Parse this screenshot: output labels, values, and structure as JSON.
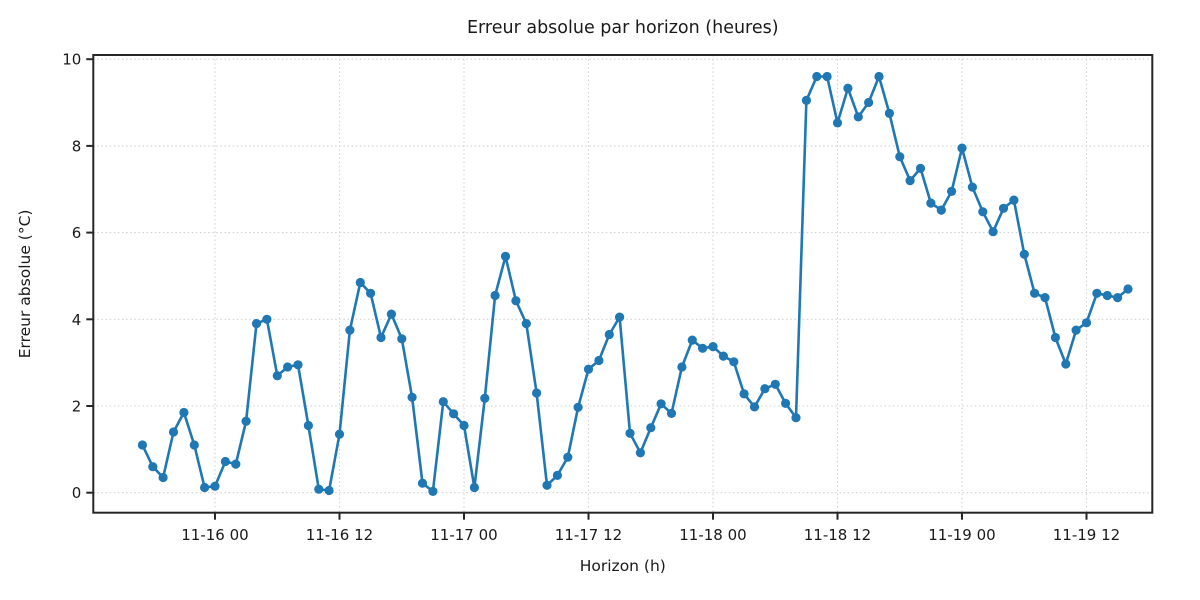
{
  "chart_data": {
    "type": "line",
    "title": "Erreur absolue par horizon (heures)",
    "xlabel": "Horizon (h)",
    "ylabel": "Erreur absolue (°C)",
    "x_start": "11-15 17:00",
    "x_step_hours": 1,
    "values": [
      1.1,
      0.6,
      0.35,
      1.4,
      1.85,
      1.1,
      0.12,
      0.15,
      0.72,
      0.66,
      1.65,
      3.9,
      4.0,
      2.7,
      2.9,
      2.95,
      1.55,
      0.08,
      0.05,
      1.35,
      3.75,
      4.85,
      4.6,
      3.58,
      4.12,
      3.55,
      2.2,
      0.22,
      0.03,
      2.1,
      1.82,
      1.55,
      0.12,
      2.18,
      4.55,
      5.45,
      4.43,
      3.9,
      2.3,
      0.17,
      0.4,
      0.82,
      1.97,
      2.85,
      3.05,
      3.65,
      4.05,
      1.37,
      0.92,
      1.5,
      2.05,
      1.83,
      2.9,
      3.52,
      3.33,
      3.37,
      3.15,
      3.02,
      2.28,
      1.98,
      2.4,
      2.5,
      2.06,
      1.73,
      9.05,
      9.6,
      9.6,
      8.53,
      9.33,
      8.67,
      9.0,
      9.6,
      8.75,
      7.75,
      7.2,
      7.48,
      6.68,
      6.52,
      6.95,
      7.95,
      7.05,
      6.48,
      6.02,
      6.56,
      6.75,
      5.5,
      4.6,
      4.5,
      3.58,
      2.97,
      3.75,
      3.92,
      4.6,
      4.55,
      4.5,
      4.7
    ],
    "x_tick_labels": [
      "11-16 00",
      "11-16 12",
      "11-17 00",
      "11-17 12",
      "11-18 00",
      "11-18 12",
      "11-19 00",
      "11-19 12"
    ],
    "x_tick_step_hours": 12,
    "y_tick_labels": [
      "0",
      "2",
      "4",
      "6",
      "8",
      "10"
    ],
    "ylim": [
      0,
      10
    ],
    "grid": "dotted",
    "legend": "none",
    "line_color": "#1f77b4",
    "marker": "circle",
    "spine_color": "#262626",
    "grid_color": "#d2d2d2",
    "background_color": "#ffffff"
  }
}
